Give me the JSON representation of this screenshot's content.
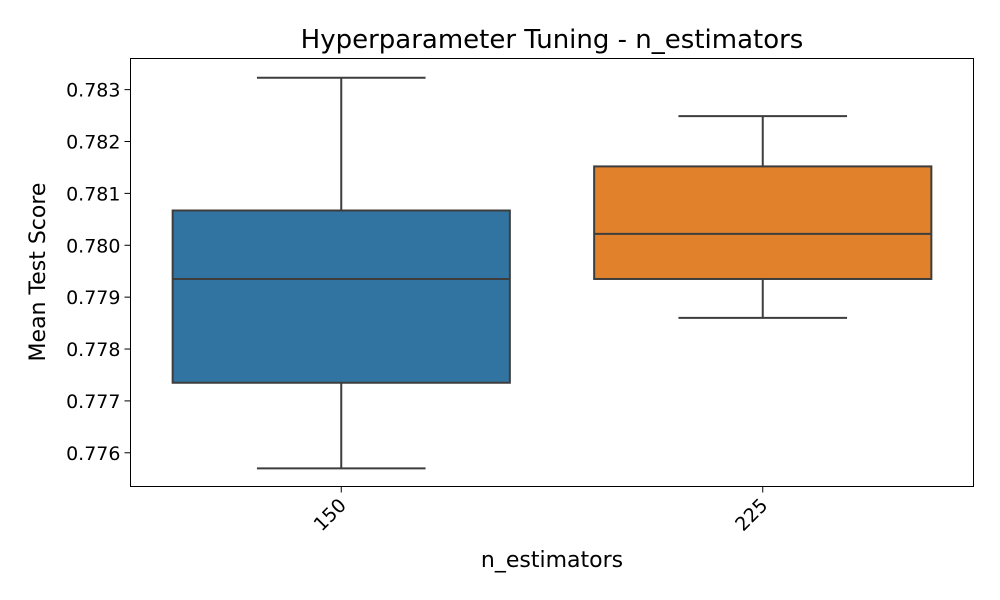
{
  "chart_data": {
    "type": "box",
    "title": "Hyperparameter Tuning - n_estimators",
    "xlabel": "n_estimators",
    "ylabel": "Mean Test Score",
    "categories": [
      "150",
      "225"
    ],
    "boxes": [
      {
        "category": "150",
        "whisker_low": 0.7757,
        "q1": 0.77735,
        "median": 0.77935,
        "q3": 0.78067,
        "whisker_high": 0.78323,
        "color": "#3274a1"
      },
      {
        "category": "225",
        "whisker_low": 0.7786,
        "q1": 0.77935,
        "median": 0.78022,
        "q3": 0.78152,
        "whisker_high": 0.78249,
        "color": "#e1812c"
      }
    ],
    "ylim": [
      0.77535,
      0.7836
    ],
    "yticks": [
      0.776,
      0.777,
      0.778,
      0.779,
      0.78,
      0.781,
      0.782,
      0.783
    ],
    "ytick_labels": [
      "0.776",
      "0.777",
      "0.778",
      "0.779",
      "0.780",
      "0.781",
      "0.782",
      "0.783"
    ],
    "xtick_rotation": 45,
    "grid": false,
    "legend": "none"
  }
}
